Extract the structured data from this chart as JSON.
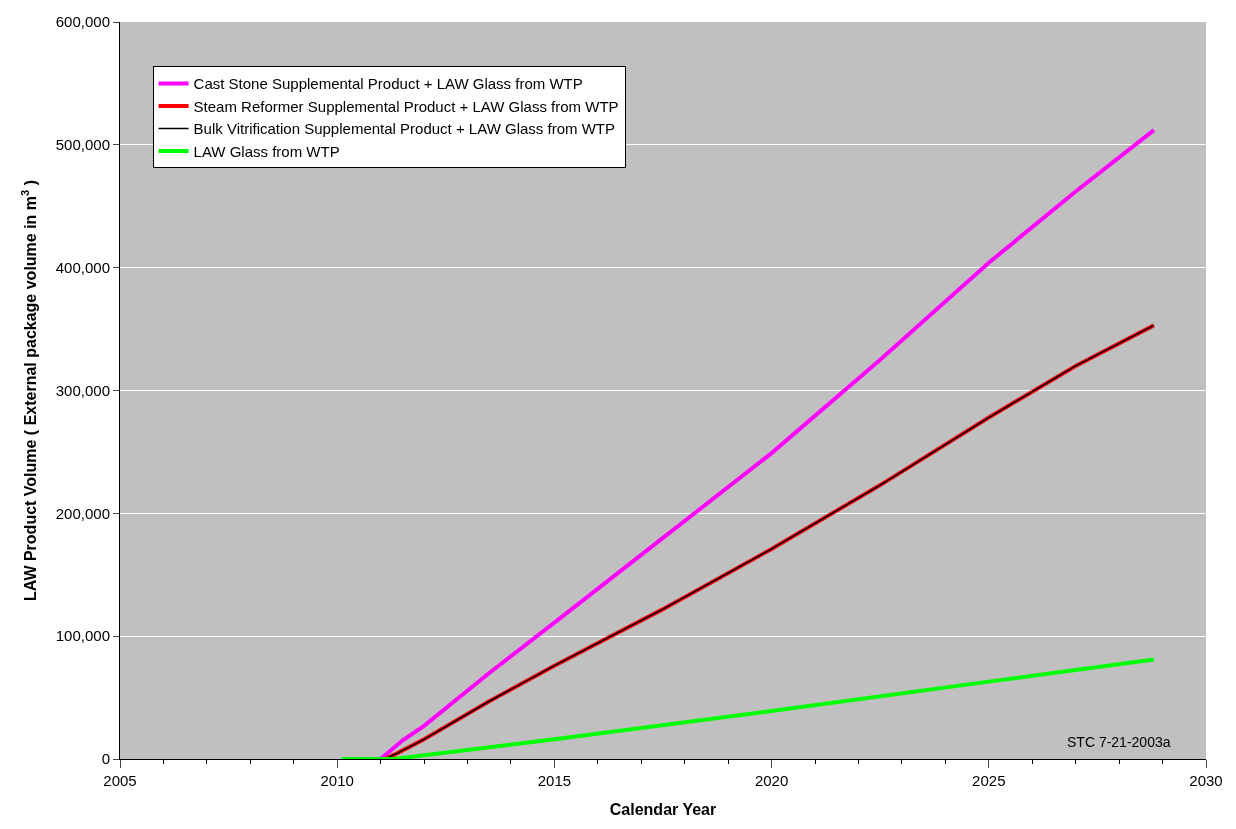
{
  "chart_data": {
    "type": "line",
    "xlabel": "Calendar Year",
    "ylabel": "LAW Product Volume ( External package volume in m$^{3}$ )",
    "xlim": [
      2005,
      2030
    ],
    "xticks": [
      2005,
      2010,
      2015,
      2020,
      2025,
      2030
    ],
    "ylim": [
      0,
      600000
    ],
    "yticks": [
      {
        "value": 0,
        "label": "0"
      },
      {
        "value": 100000,
        "label": "100,000"
      },
      {
        "value": 200000,
        "label": "200,000"
      },
      {
        "value": 300000,
        "label": "300,000"
      },
      {
        "value": 400000,
        "label": "400,000"
      },
      {
        "value": 500000,
        "label": "500,000"
      },
      {
        "value": 600000,
        "label": "600,000"
      }
    ],
    "grid": "y",
    "legend": "top left",
    "marker": "none",
    "line_style": "solid",
    "series": [
      {
        "name": "Cast Stone Supplemental Product + LAW Glass from WTP",
        "color": "#ff00ff",
        "x": [
          2011.0,
          2011.5,
          2012,
          2013.5,
          2015,
          2017.5,
          2020,
          2022.5,
          2025,
          2027,
          2028.8
        ],
        "values": [
          0,
          15000,
          27000,
          70000,
          111000,
          180000,
          249000,
          325000,
          404000,
          462000,
          512000
        ]
      },
      {
        "name": "Steam Reformer Supplemental Product + LAW Glass from WTP",
        "color": "#ff0000",
        "x": [
          2011.1,
          2011.4,
          2012,
          2013.5,
          2015,
          2017.5,
          2020,
          2022.5,
          2025,
          2027,
          2028.8
        ],
        "values": [
          0,
          5000,
          16000,
          47000,
          76000,
          122000,
          171000,
          223000,
          278000,
          320000,
          353000
        ]
      },
      {
        "name": "Bulk Vitrification Supplemental Product + LAW Glass from WTP",
        "color": "#000000",
        "x": [
          2011.1,
          2011.4,
          2012,
          2013.5,
          2015,
          2017.5,
          2020,
          2022.5,
          2025,
          2027,
          2028.8
        ],
        "values": [
          0,
          5000,
          16000,
          47000,
          76000,
          122000,
          171000,
          223000,
          278000,
          320000,
          353000
        ]
      },
      {
        "name": "LAW Glass from WTP",
        "color": "#00ff00",
        "x": [
          2010.1,
          2011.3,
          2015,
          2020,
          2025,
          2028.8
        ],
        "values": [
          0,
          0,
          16000,
          39000,
          63000,
          81000
        ]
      }
    ],
    "annotations": [
      "STC 7-21-2003a"
    ]
  }
}
